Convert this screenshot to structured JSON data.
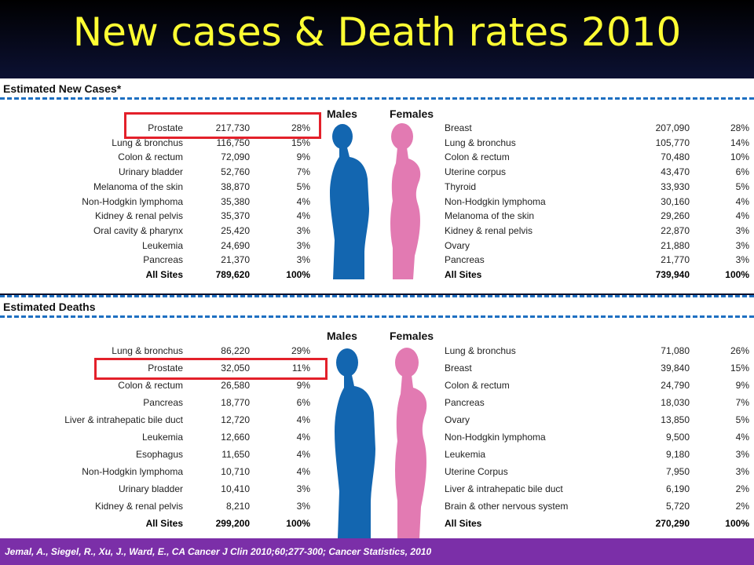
{
  "title": "New cases & Death rates 2010",
  "colors": {
    "title": "#ffff33",
    "male": "#1366b0",
    "female": "#e27ab2",
    "highlight": "#e3202a",
    "footer": "#7b2fa8",
    "dash": "#1e6fc1"
  },
  "cases": {
    "heading": "Estimated New Cases*",
    "males_label": "Males",
    "females_label": "Females",
    "males": [
      {
        "site": "Prostate",
        "count": "217,730",
        "pct": "28%"
      },
      {
        "site": "Lung & bronchus",
        "count": "116,750",
        "pct": "15%"
      },
      {
        "site": "Colon & rectum",
        "count": "72,090",
        "pct": "9%"
      },
      {
        "site": "Urinary bladder",
        "count": "52,760",
        "pct": "7%"
      },
      {
        "site": "Melanoma of the skin",
        "count": "38,870",
        "pct": "5%"
      },
      {
        "site": "Non-Hodgkin lymphoma",
        "count": "35,380",
        "pct": "4%"
      },
      {
        "site": "Kidney & renal pelvis",
        "count": "35,370",
        "pct": "4%"
      },
      {
        "site": "Oral cavity & pharynx",
        "count": "25,420",
        "pct": "3%"
      },
      {
        "site": "Leukemia",
        "count": "24,690",
        "pct": "3%"
      },
      {
        "site": "Pancreas",
        "count": "21,370",
        "pct": "3%"
      }
    ],
    "males_total": {
      "site": "All Sites",
      "count": "789,620",
      "pct": "100%"
    },
    "females": [
      {
        "site": "Breast",
        "count": "207,090",
        "pct": "28%"
      },
      {
        "site": "Lung & bronchus",
        "count": "105,770",
        "pct": "14%"
      },
      {
        "site": "Colon & rectum",
        "count": "70,480",
        "pct": "10%"
      },
      {
        "site": "Uterine corpus",
        "count": "43,470",
        "pct": "6%"
      },
      {
        "site": "Thyroid",
        "count": "33,930",
        "pct": "5%"
      },
      {
        "site": "Non-Hodgkin lymphoma",
        "count": "30,160",
        "pct": "4%"
      },
      {
        "site": "Melanoma of the skin",
        "count": "29,260",
        "pct": "4%"
      },
      {
        "site": "Kidney & renal pelvis",
        "count": "22,870",
        "pct": "3%"
      },
      {
        "site": "Ovary",
        "count": "21,880",
        "pct": "3%"
      },
      {
        "site": "Pancreas",
        "count": "21,770",
        "pct": "3%"
      }
    ],
    "females_total": {
      "site": "All Sites",
      "count": "739,940",
      "pct": "100%"
    },
    "highlighted_male_row": "Prostate"
  },
  "deaths": {
    "heading": "Estimated Deaths",
    "males_label": "Males",
    "females_label": "Females",
    "males": [
      {
        "site": "Lung & bronchus",
        "count": "86,220",
        "pct": "29%"
      },
      {
        "site": "Prostate",
        "count": "32,050",
        "pct": "11%"
      },
      {
        "site": "Colon & rectum",
        "count": "26,580",
        "pct": "9%"
      },
      {
        "site": "Pancreas",
        "count": "18,770",
        "pct": "6%"
      },
      {
        "site": "Liver & intrahepatic bile duct",
        "count": "12,720",
        "pct": "4%"
      },
      {
        "site": "Leukemia",
        "count": "12,660",
        "pct": "4%"
      },
      {
        "site": "Esophagus",
        "count": "11,650",
        "pct": "4%"
      },
      {
        "site": "Non-Hodgkin lymphoma",
        "count": "10,710",
        "pct": "4%"
      },
      {
        "site": "Urinary bladder",
        "count": "10,410",
        "pct": "3%"
      },
      {
        "site": "Kidney & renal pelvis",
        "count": "8,210",
        "pct": "3%"
      }
    ],
    "males_total": {
      "site": "All Sites",
      "count": "299,200",
      "pct": "100%"
    },
    "females": [
      {
        "site": "Lung & bronchus",
        "count": "71,080",
        "pct": "26%"
      },
      {
        "site": "Breast",
        "count": "39,840",
        "pct": "15%"
      },
      {
        "site": "Colon & rectum",
        "count": "24,790",
        "pct": "9%"
      },
      {
        "site": "Pancreas",
        "count": "18,030",
        "pct": "7%"
      },
      {
        "site": "Ovary",
        "count": "13,850",
        "pct": "5%"
      },
      {
        "site": "Non-Hodgkin lymphoma",
        "count": "9,500",
        "pct": "4%"
      },
      {
        "site": "Leukemia",
        "count": "9,180",
        "pct": "3%"
      },
      {
        "site": "Uterine Corpus",
        "count": "7,950",
        "pct": "3%"
      },
      {
        "site": "Liver & intrahepatic bile duct",
        "count": "6,190",
        "pct": "2%"
      },
      {
        "site": "Brain & other nervous system",
        "count": "5,720",
        "pct": "2%"
      }
    ],
    "females_total": {
      "site": "All Sites",
      "count": "270,290",
      "pct": "100%"
    },
    "highlighted_male_row": "Prostate"
  },
  "citation": "Jemal, A., Siegel, R., Xu, J., Ward, E., CA Cancer J Clin 2010;60;277-300; Cancer Statistics, 2010"
}
